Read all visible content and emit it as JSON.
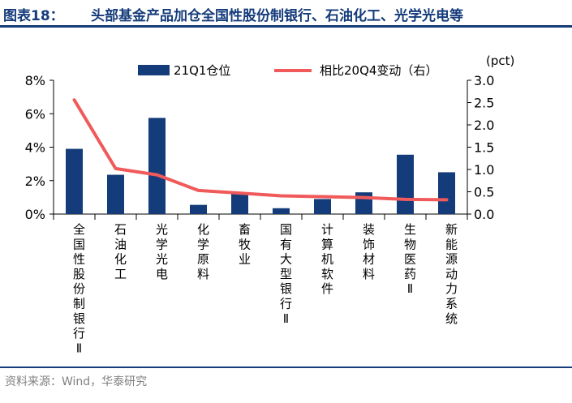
{
  "header": {
    "label": "图表18：",
    "title": "头部基金产品加仓全国性股份制银行、石油化工、光学光电等"
  },
  "source": "资料来源：Wind，华泰研究",
  "colors": {
    "bar": "#143b7a",
    "line": "#f05a5a",
    "title": "#143b7a"
  },
  "chart_data": {
    "type": "bar",
    "categories": [
      "全国性股份制银行Ⅱ",
      "石油化工",
      "光学光电",
      "化学原料",
      "畜牧业",
      "国有大型银行Ⅱ",
      "计算机软件",
      "装饰材料",
      "生物医药Ⅱ",
      "新能源动力系统"
    ],
    "series": [
      {
        "name": "21Q1仓位",
        "type": "bar",
        "axis": "left",
        "values": [
          3.9,
          2.35,
          5.75,
          0.55,
          1.3,
          0.35,
          0.9,
          1.3,
          3.55,
          2.5
        ]
      },
      {
        "name": "相比20Q4变动（右）",
        "type": "line",
        "axis": "right",
        "values": [
          2.56,
          1.02,
          0.88,
          0.53,
          0.47,
          0.41,
          0.39,
          0.37,
          0.33,
          0.32
        ]
      }
    ],
    "y_left": {
      "ylim": [
        0,
        8
      ],
      "ticks": [
        0,
        2,
        4,
        6,
        8
      ],
      "tick_labels": [
        "0%",
        "2%",
        "4%",
        "6%",
        "8%"
      ]
    },
    "y_right": {
      "ylim": [
        0,
        3
      ],
      "ticks": [
        0,
        0.5,
        1,
        1.5,
        2,
        2.5,
        3
      ],
      "tick_labels": [
        "0.0",
        "0.5",
        "1.0",
        "1.5",
        "2.0",
        "2.5",
        "3.0"
      ],
      "unit": "(pct)"
    },
    "grid": false,
    "legend": "top"
  }
}
